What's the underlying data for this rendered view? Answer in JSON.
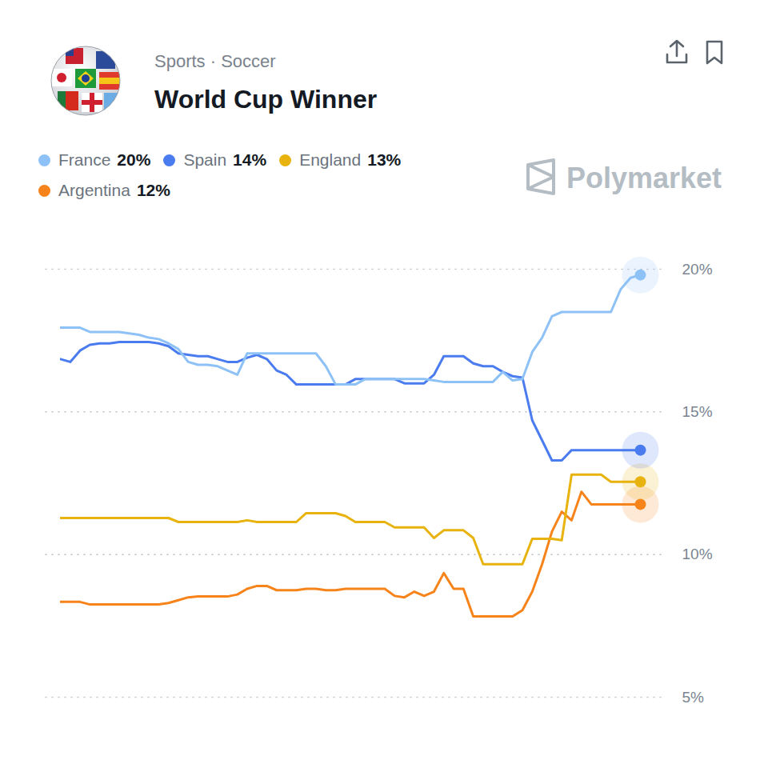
{
  "chart_data": {
    "type": "line",
    "subtitle": "Sports · Soccer",
    "title": "World Cup Winner",
    "watermark": "Polymarket",
    "legend": "top",
    "grid": true,
    "tick_labels": "y",
    "x": [
      0,
      1,
      2,
      3,
      4,
      5,
      6,
      7,
      8,
      9,
      10,
      11,
      12,
      13,
      14,
      15,
      16,
      17,
      18,
      19,
      20,
      21,
      22,
      23,
      24,
      25,
      26,
      27,
      28,
      29,
      30,
      31,
      32,
      33,
      34,
      35,
      36,
      37,
      38,
      39,
      40,
      41,
      42,
      43,
      44,
      45,
      46,
      47,
      48,
      49,
      50,
      51,
      52,
      53,
      54,
      55,
      56,
      57,
      58,
      59
    ],
    "xlim": [
      0,
      59
    ],
    "ylim": [
      5,
      20
    ],
    "yticks": [
      {
        "value": 5,
        "label": "5%"
      },
      {
        "value": 10,
        "label": "10%"
      },
      {
        "value": 15,
        "label": "15%"
      },
      {
        "value": 20,
        "label": "20%"
      }
    ],
    "series": [
      {
        "name": "France",
        "color": "#8ec2f7",
        "legend_value": 20,
        "legend_value_label": "20%",
        "values": [
          17.95,
          17.95,
          17.95,
          17.8,
          17.8,
          17.8,
          17.8,
          17.75,
          17.7,
          17.6,
          17.55,
          17.4,
          17.2,
          16.75,
          16.65,
          16.65,
          16.6,
          16.45,
          16.3,
          17.05,
          17.05,
          17.05,
          17.05,
          17.05,
          17.05,
          17.05,
          17.05,
          16.6,
          15.96,
          15.96,
          15.96,
          16.15,
          16.15,
          16.15,
          16.15,
          16.15,
          16.15,
          16.15,
          16.1,
          16.05,
          16.05,
          16.05,
          16.05,
          16.05,
          16.05,
          16.4,
          16.1,
          16.15,
          17.1,
          17.6,
          18.35,
          18.5,
          18.5,
          18.5,
          18.5,
          18.5,
          18.5,
          19.3,
          19.7,
          19.8
        ]
      },
      {
        "name": "Spain",
        "color": "#4a7cf0",
        "legend_value": 14,
        "legend_value_label": "14%",
        "values": [
          16.85,
          16.75,
          17.15,
          17.35,
          17.4,
          17.4,
          17.45,
          17.45,
          17.45,
          17.45,
          17.4,
          17.3,
          17.05,
          17.0,
          16.95,
          16.95,
          16.85,
          16.75,
          16.75,
          16.9,
          17.0,
          16.85,
          16.45,
          16.3,
          15.96,
          15.96,
          15.96,
          15.96,
          15.96,
          15.96,
          16.15,
          16.15,
          16.15,
          16.15,
          16.15,
          16.0,
          16.0,
          16.0,
          16.3,
          16.95,
          16.95,
          16.95,
          16.7,
          16.6,
          16.6,
          16.4,
          16.25,
          16.2,
          14.7,
          14.0,
          13.3,
          13.3,
          13.66,
          13.66,
          13.66,
          13.66,
          13.66,
          13.66,
          13.66,
          13.66
        ]
      },
      {
        "name": "England",
        "color": "#e8b30e",
        "legend_value": 13,
        "legend_value_label": "13%",
        "values": [
          11.28,
          11.28,
          11.28,
          11.28,
          11.28,
          11.28,
          11.28,
          11.28,
          11.28,
          11.28,
          11.28,
          11.28,
          11.14,
          11.14,
          11.14,
          11.14,
          11.14,
          11.14,
          11.14,
          11.2,
          11.14,
          11.14,
          11.14,
          11.14,
          11.14,
          11.45,
          11.45,
          11.45,
          11.45,
          11.35,
          11.14,
          11.14,
          11.14,
          11.14,
          10.95,
          10.95,
          10.95,
          10.95,
          10.58,
          10.85,
          10.85,
          10.85,
          10.58,
          9.66,
          9.66,
          9.66,
          9.66,
          9.66,
          10.55,
          10.55,
          10.55,
          10.5,
          12.8,
          12.8,
          12.8,
          12.8,
          12.55,
          12.55,
          12.55,
          12.55
        ]
      },
      {
        "name": "Argentina",
        "color": "#f7831b",
        "legend_value": 12,
        "legend_value_label": "12%",
        "values": [
          8.34,
          8.34,
          8.34,
          8.25,
          8.25,
          8.25,
          8.25,
          8.25,
          8.25,
          8.25,
          8.25,
          8.3,
          8.4,
          8.5,
          8.53,
          8.53,
          8.53,
          8.53,
          8.6,
          8.8,
          8.9,
          8.9,
          8.75,
          8.75,
          8.75,
          8.8,
          8.8,
          8.75,
          8.75,
          8.8,
          8.8,
          8.8,
          8.8,
          8.8,
          8.55,
          8.5,
          8.7,
          8.55,
          8.7,
          9.35,
          8.8,
          8.8,
          7.83,
          7.83,
          7.83,
          7.83,
          7.83,
          8.05,
          8.7,
          9.66,
          10.8,
          11.5,
          11.2,
          12.2,
          11.76,
          11.76,
          11.76,
          11.76,
          11.76,
          11.76
        ]
      }
    ]
  }
}
